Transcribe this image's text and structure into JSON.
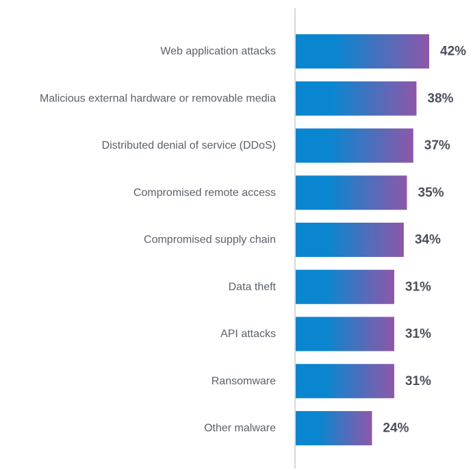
{
  "chart_data": {
    "type": "bar",
    "orientation": "horizontal",
    "categories": [
      "Web application attacks",
      "Malicious external hardware or removable media",
      "Distributed denial of service (DDoS)",
      "Compromised remote access",
      "Compromised supply chain",
      "Data theft",
      "API attacks",
      "Ransomware",
      "Other malware"
    ],
    "values": [
      42,
      38,
      37,
      35,
      34,
      31,
      31,
      31,
      24
    ],
    "value_labels": [
      "42%",
      "38%",
      "37%",
      "35%",
      "34%",
      "31%",
      "31%",
      "31%",
      "24%"
    ],
    "unit": "%",
    "xlim": [
      0,
      42
    ],
    "grid": false,
    "legend": "none",
    "colors": {
      "bar_gradient_start": "#0a86d0",
      "bar_gradient_end": "#8e57a8",
      "axis_line": "#c8ccd6",
      "category_text": "#5a5f6b",
      "value_text": "#4a4f5c"
    }
  }
}
